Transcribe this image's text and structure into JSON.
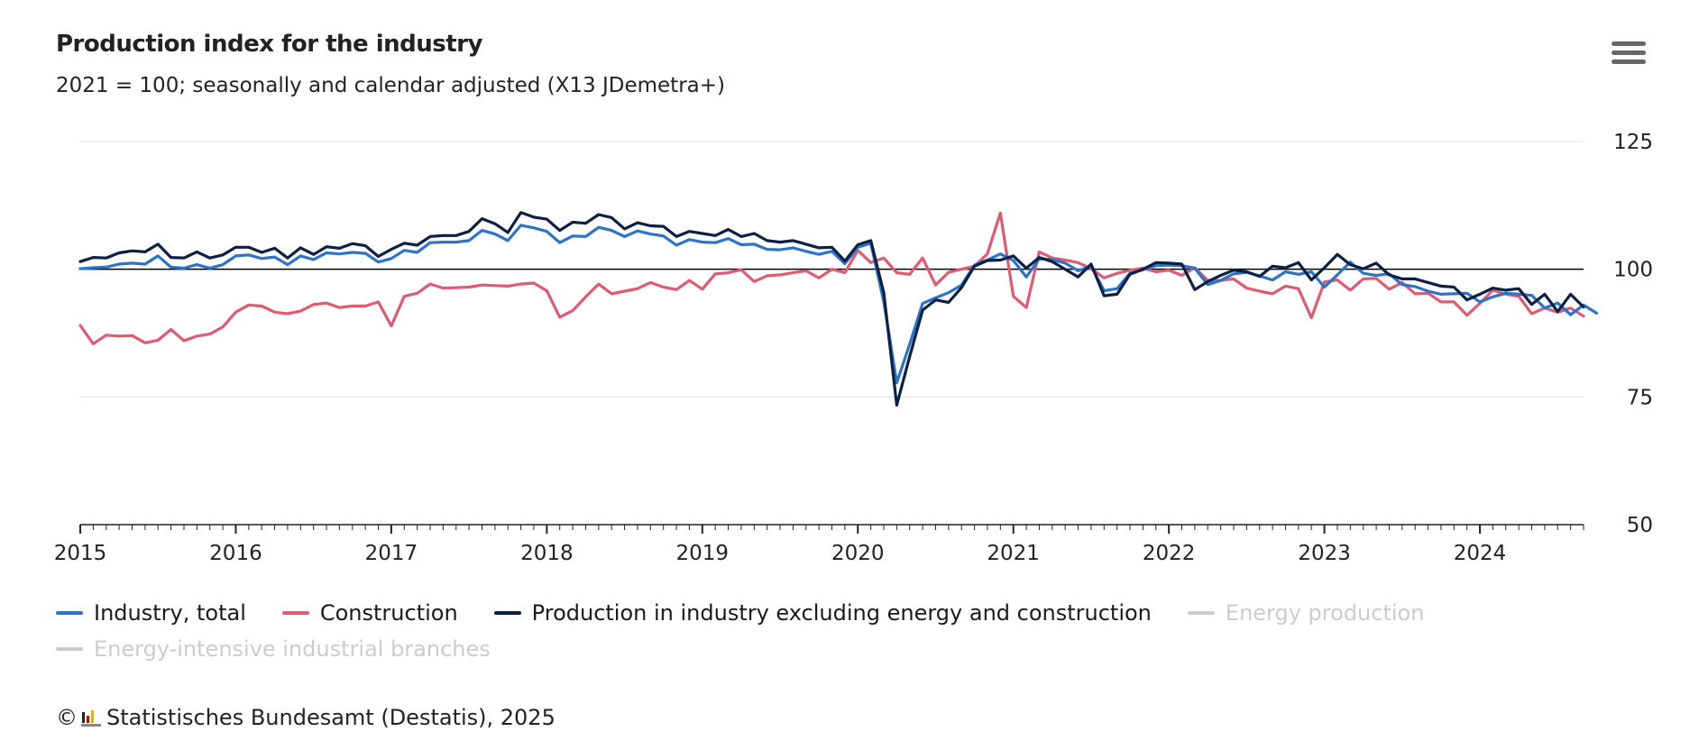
{
  "title": "Production index for the industry",
  "subtitle": "2021 = 100; seasonally and calendar adjusted (X13 JDemetra+)",
  "menu_icon": "hamburger-menu-icon",
  "credits": "Statistisches Bundesamt (Destatis), 2025",
  "credits_copyright": "©",
  "chart_data": {
    "type": "line",
    "x_start": "2015-01",
    "x_end": "2024-09",
    "x_tick_labels": [
      "2015",
      "2016",
      "2017",
      "2018",
      "2019",
      "2020",
      "2021",
      "2022",
      "2023",
      "2024"
    ],
    "y_tick_labels": [
      "50",
      "75",
      "100",
      "125"
    ],
    "ylim": [
      50,
      125
    ],
    "reference_line": 100,
    "grid": true,
    "legend_position": "bottom",
    "series": [
      {
        "name": "Industry, total",
        "color": "#2a74c9",
        "visible": true,
        "values": [
          100.1,
          100.3,
          100.4,
          101.0,
          101.2,
          101.0,
          102.6,
          100.4,
          100.2,
          100.9,
          100.2,
          100.9,
          102.6,
          102.8,
          102.1,
          102.4,
          100.9,
          102.6,
          101.9,
          103.2,
          103.0,
          103.3,
          103.1,
          101.4,
          102.1,
          103.7,
          103.3,
          105.2,
          105.3,
          105.3,
          105.6,
          107.6,
          106.9,
          105.6,
          108.6,
          108.1,
          107.4,
          105.2,
          106.5,
          106.4,
          108.2,
          107.6,
          106.4,
          107.5,
          106.9,
          106.5,
          104.7,
          105.8,
          105.3,
          105.2,
          106.0,
          104.8,
          104.9,
          103.9,
          103.8,
          104.2,
          103.5,
          102.9,
          103.5,
          101.1,
          104.3,
          105.1,
          93.7,
          77.8,
          85.3,
          93.3,
          94.4,
          95.4,
          96.9,
          100.8,
          101.8,
          103.0,
          101.7,
          98.5,
          102.0,
          101.9,
          101.2,
          99.7,
          100.6,
          95.8,
          96.2,
          99.2,
          99.9,
          100.7,
          100.8,
          100.7,
          100.2,
          97.0,
          97.8,
          99.1,
          99.4,
          98.7,
          97.9,
          99.5,
          99.0,
          99.5,
          96.5,
          98.9,
          101.4,
          99.2,
          98.8,
          99.1,
          97.0,
          96.6,
          95.7,
          95.1,
          95.2,
          95.3,
          93.6,
          94.6,
          95.3,
          95.1,
          94.9,
          92.4,
          93.4,
          91.1,
          93.0,
          91.4
        ]
      },
      {
        "name": "Construction",
        "color": "#e05a72",
        "visible": true,
        "values": [
          89.0,
          85.4,
          87.1,
          86.9,
          87.0,
          85.6,
          86.1,
          88.2,
          86.0,
          86.9,
          87.3,
          88.7,
          91.6,
          93.0,
          92.8,
          91.6,
          91.3,
          91.8,
          93.1,
          93.4,
          92.5,
          92.8,
          92.8,
          93.6,
          88.9,
          94.7,
          95.3,
          97.1,
          96.3,
          96.4,
          96.5,
          96.9,
          96.8,
          96.7,
          97.1,
          97.3,
          95.8,
          90.6,
          91.9,
          94.6,
          97.1,
          95.2,
          95.7,
          96.2,
          97.4,
          96.5,
          96.0,
          97.8,
          96.1,
          99.1,
          99.3,
          99.9,
          97.6,
          98.7,
          98.9,
          99.3,
          99.7,
          98.3,
          100.0,
          99.3,
          103.7,
          101.3,
          102.2,
          99.3,
          99.0,
          102.2,
          96.9,
          99.4,
          100.0,
          100.6,
          103.0,
          111.0,
          94.7,
          92.5,
          103.4,
          102.2,
          101.8,
          101.3,
          100.1,
          98.3,
          99.2,
          99.8,
          100.2,
          99.5,
          99.8,
          98.8,
          100.3,
          97.8,
          97.8,
          98.1,
          96.3,
          95.7,
          95.2,
          96.7,
          96.2,
          90.5,
          97.5,
          97.9,
          95.9,
          98.1,
          98.2,
          96.1,
          97.4,
          95.2,
          95.3,
          93.6,
          93.6,
          91.0,
          93.3,
          95.9,
          95.1,
          94.7,
          91.3,
          92.4,
          91.6,
          92.4,
          90.8
        ]
      },
      {
        "name": "Production in industry excluding energy and construction",
        "color": "#0c1f44",
        "visible": true,
        "values": [
          101.5,
          102.3,
          102.2,
          103.2,
          103.6,
          103.4,
          104.9,
          102.3,
          102.2,
          103.4,
          102.2,
          102.8,
          104.3,
          104.3,
          103.3,
          104.1,
          102.2,
          104.2,
          102.9,
          104.4,
          104.1,
          105.0,
          104.6,
          102.5,
          103.9,
          105.1,
          104.7,
          106.4,
          106.6,
          106.6,
          107.4,
          109.9,
          108.9,
          107.2,
          111.1,
          110.2,
          109.8,
          107.6,
          109.2,
          109.0,
          110.7,
          110.1,
          107.9,
          109.1,
          108.5,
          108.4,
          106.4,
          107.4,
          107.0,
          106.6,
          107.8,
          106.4,
          107.0,
          105.6,
          105.3,
          105.6,
          104.9,
          104.2,
          104.3,
          101.6,
          104.8,
          105.6,
          95.4,
          73.4,
          82.9,
          92.0,
          94.0,
          93.5,
          96.4,
          100.6,
          101.7,
          101.8,
          102.6,
          100.2,
          102.3,
          101.5,
          100.0,
          98.5,
          101.0,
          94.8,
          95.1,
          99.0,
          100.0,
          101.3,
          101.2,
          101.0,
          96.0,
          97.6,
          98.8,
          99.8,
          99.5,
          98.6,
          100.6,
          100.3,
          101.3,
          97.9,
          100.3,
          102.9,
          100.9,
          100.1,
          101.2,
          98.9,
          98.1,
          98.1,
          97.4,
          96.7,
          96.5,
          94.0,
          95.1,
          96.3,
          95.9,
          96.2,
          93.1,
          95.1,
          91.7,
          95.1,
          92.6
        ]
      },
      {
        "name": "Energy production",
        "color": "#cccccc",
        "visible": false,
        "values": []
      },
      {
        "name": "Energy-intensive industrial branches",
        "color": "#cccccc",
        "visible": false,
        "values": []
      }
    ]
  }
}
